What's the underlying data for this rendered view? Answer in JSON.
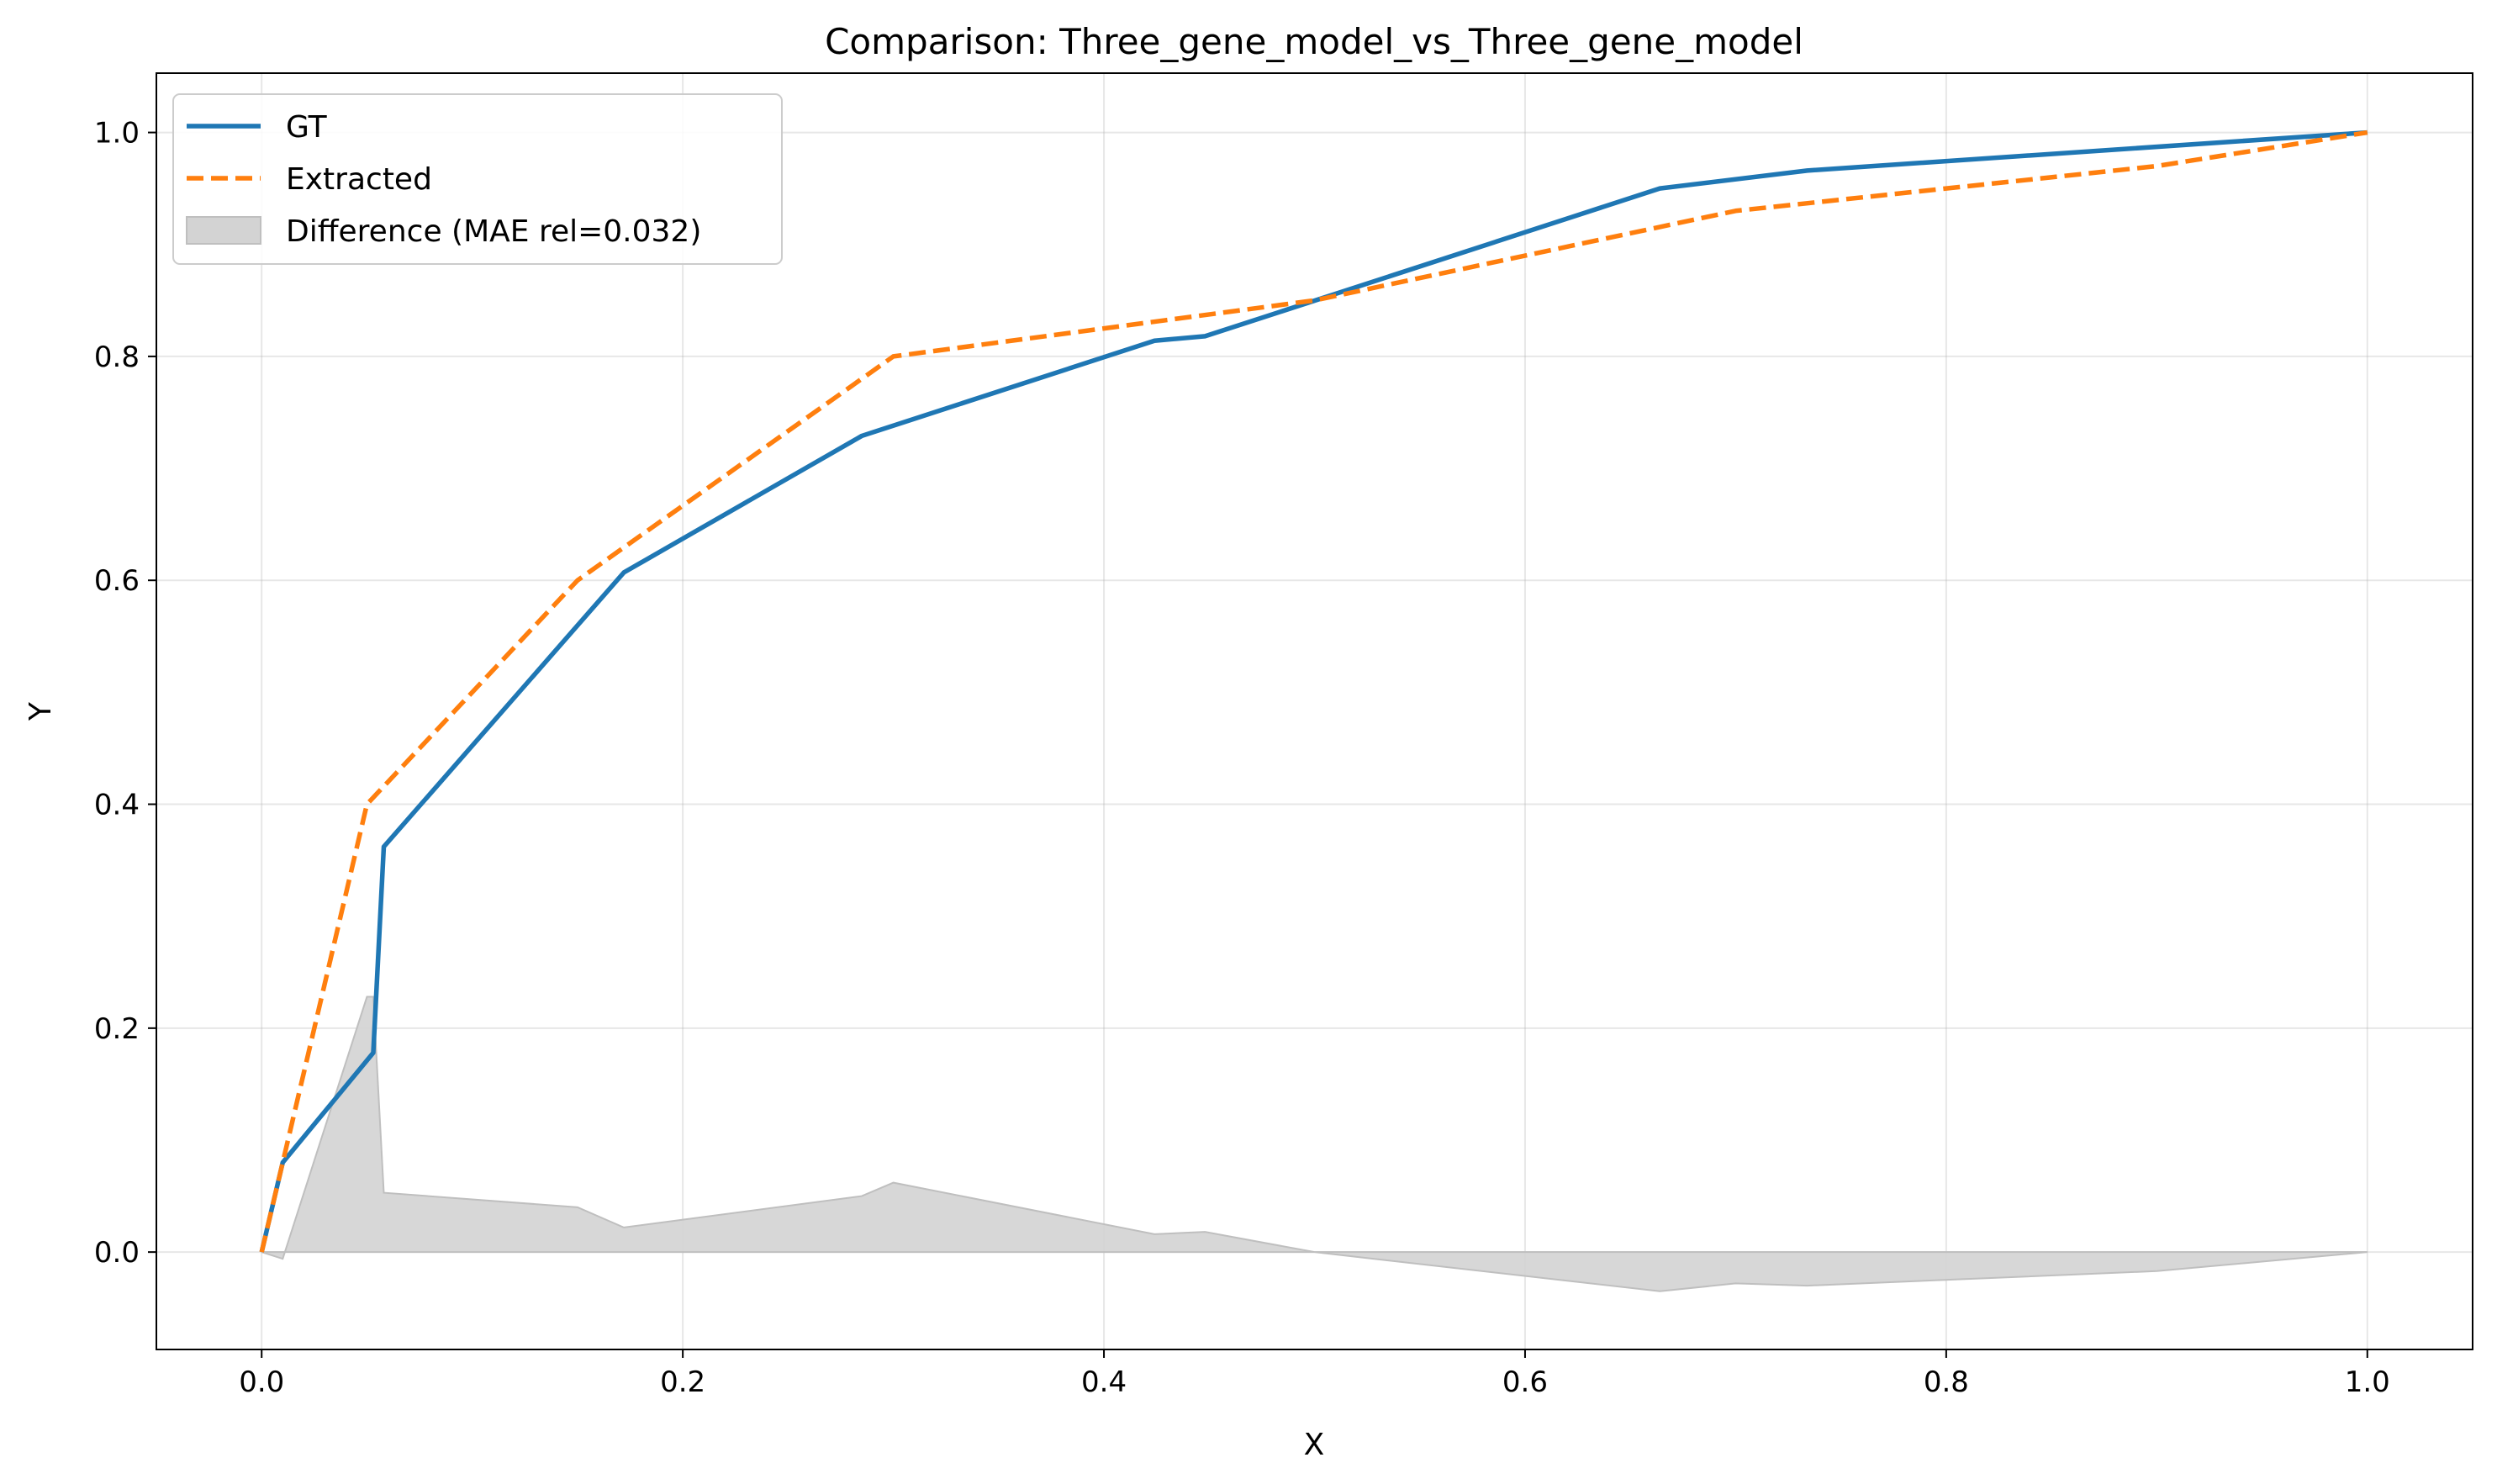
{
  "chart_data": {
    "type": "line",
    "title": "Comparison: Three_gene_model_vs_Three_gene_model",
    "xlabel": "X",
    "ylabel": "Y",
    "xlim": [
      -0.05,
      1.05
    ],
    "ylim": [
      -0.087,
      1.053
    ],
    "xticks": [
      0.0,
      0.2,
      0.4,
      0.6,
      0.8,
      1.0
    ],
    "xtick_labels": [
      "0.0",
      "0.2",
      "0.4",
      "0.6",
      "0.8",
      "1.0"
    ],
    "yticks": [
      0.0,
      0.2,
      0.4,
      0.6,
      0.8,
      1.0
    ],
    "ytick_labels": [
      "0.0",
      "0.2",
      "0.4",
      "0.6",
      "0.8",
      "1.0"
    ],
    "grid": true,
    "legend_position": "top-left",
    "series": [
      {
        "name": "GT",
        "color": "#1f77b4",
        "style": "solid",
        "x": [
          0.0,
          0.01,
          0.053,
          0.058,
          0.172,
          0.285,
          0.424,
          0.448,
          0.664,
          0.734,
          1.0
        ],
        "y": [
          0.0,
          0.08,
          0.178,
          0.362,
          0.607,
          0.729,
          0.814,
          0.818,
          0.95,
          0.966,
          1.0
        ]
      },
      {
        "name": "Extracted",
        "color": "#ff7f0e",
        "style": "dashed",
        "x": [
          0.0,
          0.01,
          0.05,
          0.15,
          0.3,
          0.5,
          0.7,
          0.9,
          1.0
        ],
        "y": [
          0.0,
          0.08,
          0.4,
          0.6,
          0.8,
          0.85,
          0.93,
          0.97,
          1.0
        ]
      }
    ],
    "difference": {
      "name": "Difference (MAE rel=0.032)",
      "color": "#d3d3d3",
      "x": [
        0.0,
        0.01,
        0.05,
        0.053,
        0.058,
        0.15,
        0.172,
        0.285,
        0.3,
        0.424,
        0.448,
        0.5,
        0.664,
        0.7,
        0.734,
        0.9,
        1.0
      ],
      "y": [
        0.0,
        -0.006,
        0.228,
        0.228,
        0.053,
        0.04,
        0.022,
        0.05,
        0.062,
        0.016,
        0.018,
        0.0,
        -0.035,
        -0.028,
        -0.03,
        -0.017,
        0.0
      ]
    }
  }
}
